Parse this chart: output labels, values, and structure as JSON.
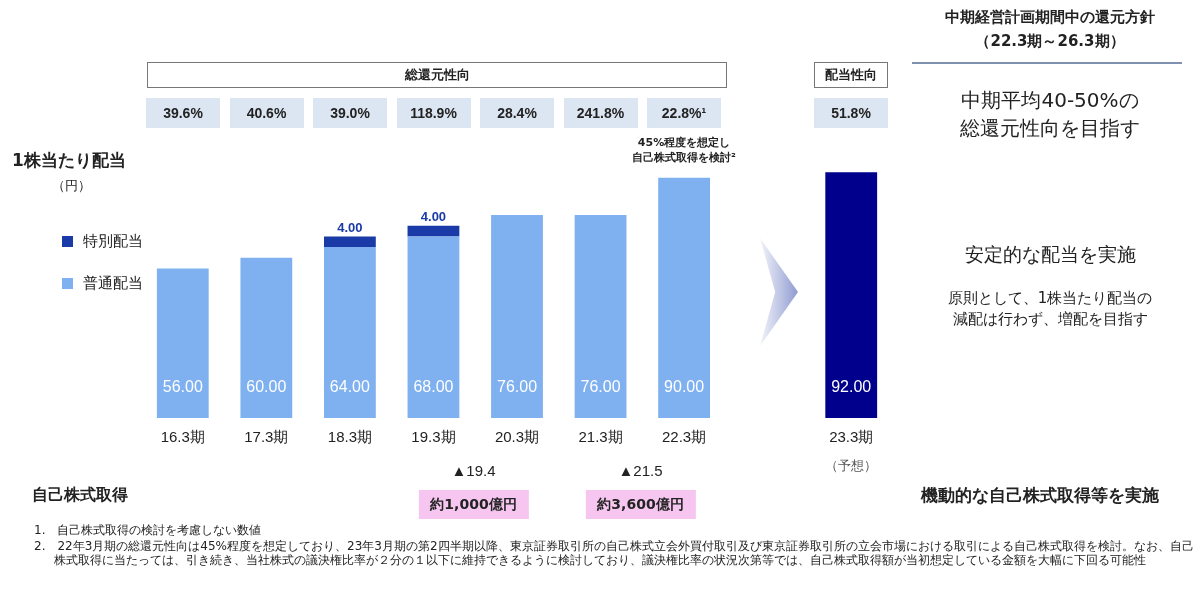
{
  "chart_data": {
    "type": "bar",
    "stacked": true,
    "ylabel": "1株当たり配当",
    "legend": "left",
    "data_labels": true,
    "categories": [
      "16.3期",
      "17.3期",
      "18.3期",
      "19.3期",
      "20.3期",
      "21.3期",
      "22.3期",
      null,
      "23.3期"
    ],
    "series": [
      {
        "name": "普通配当",
        "color": "#7fb0f0",
        "colors": [
          "#7fb0f0",
          "#7fb0f0",
          "#7fb0f0",
          "#7fb0f0",
          "#7fb0f0",
          "#7fb0f0",
          "#7fb0f0",
          null,
          "#00008c"
        ],
        "values": [
          56,
          60,
          64,
          68,
          76,
          76,
          90,
          null,
          92
        ],
        "value_labels": [
          "56.00",
          "60.00",
          "64.00",
          "68.00",
          "76.00",
          "76.00",
          "90.00",
          null,
          "92.00"
        ]
      },
      {
        "name": "特別配当",
        "color": "#1a3aa8",
        "values": [
          null,
          null,
          4,
          4,
          null,
          null,
          null,
          null,
          null
        ],
        "value_labels": [
          null,
          null,
          "4.00",
          "4.00",
          null,
          null,
          null,
          null,
          null
        ]
      }
    ],
    "annotations": [
      "39.6%",
      "40.6%",
      "39.0%",
      "118.9%",
      "28.4%",
      "241.8%",
      "22.8%¹",
      "総還元性向",
      "配当性向",
      "51.8%",
      "中期経営計画期間中の還元方針",
      "（22.3期～26.3期）",
      "中期平均40-50%の",
      "総還元性向を目指す",
      "安定的な配当を実施",
      "原則として、1株当たり配当の",
      "減配は行わず、増配を目指す",
      "45%程度を想定し",
      "自己株式取得を検討²",
      "（円）",
      "（予想）",
      "▲19.4",
      "▲21.5",
      "約1,000億円",
      "約3,600億円",
      "自己株式取得",
      "機動的な自己株式取得等を実施",
      "1.　自己株式取得の検討を考慮しない数値",
      "2.　22年3月期の総還元性向は45%程度を想定しており、23年3月期の第2四半期以降、東京証券取引所の自己株式立会外買付取引及び東京証券取引所の立会市場における取引による自己株式取得を検討。なお、自己株式取得に当たっては、引き続き、当社株式の議決権比率が２分の１以下に維持できるように検討しており、議決権比率の状況次第等では、自己株式取得額が当初想定している金額を大幅に下回る可能性"
    ]
  }
}
